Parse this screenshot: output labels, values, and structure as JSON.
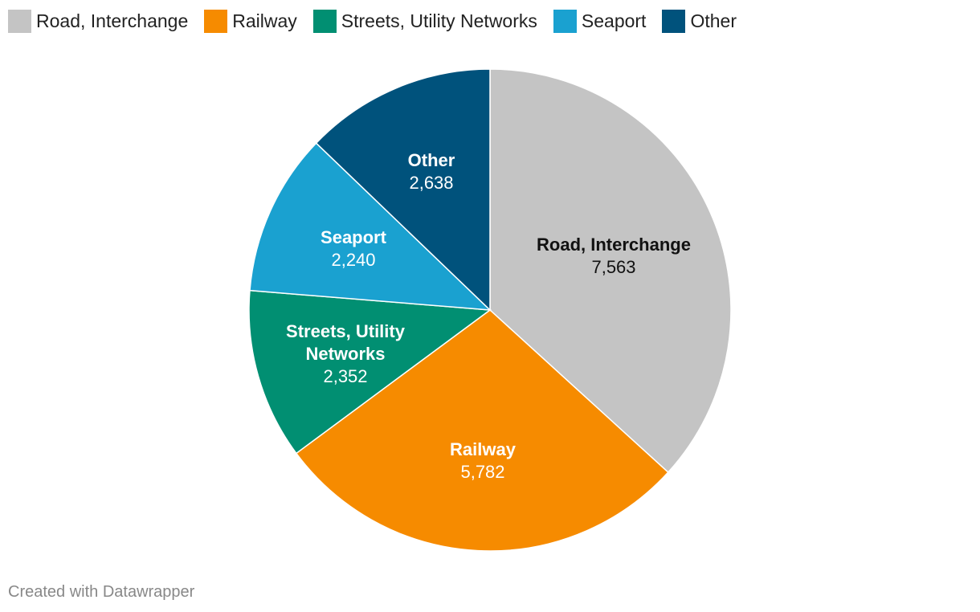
{
  "chart_data": {
    "type": "pie",
    "categories": [
      "Road, Interchange",
      "Railway",
      "Streets, Utility Networks",
      "Seaport",
      "Other"
    ],
    "values": [
      7563,
      5782,
      2352,
      2240,
      2638
    ],
    "value_labels": [
      "7,563",
      "5,782",
      "2,352",
      "2,240",
      "2,638"
    ],
    "colors": [
      "#c4c4c4",
      "#f68b00",
      "#018f72",
      "#1aa1d0",
      "#00527c"
    ],
    "label_colors": [
      "#111111",
      "#ffffff",
      "#ffffff",
      "#ffffff",
      "#ffffff"
    ],
    "legend_position": "top-left"
  },
  "legend": [
    {
      "label": "Road, Interchange",
      "color": "#c4c4c4"
    },
    {
      "label": "Railway",
      "color": "#f68b00"
    },
    {
      "label": "Streets, Utility Networks",
      "color": "#018f72"
    },
    {
      "label": "Seaport",
      "color": "#1aa1d0"
    },
    {
      "label": "Other",
      "color": "#00527c"
    }
  ],
  "footer": {
    "credit": "Created with Datawrapper"
  }
}
